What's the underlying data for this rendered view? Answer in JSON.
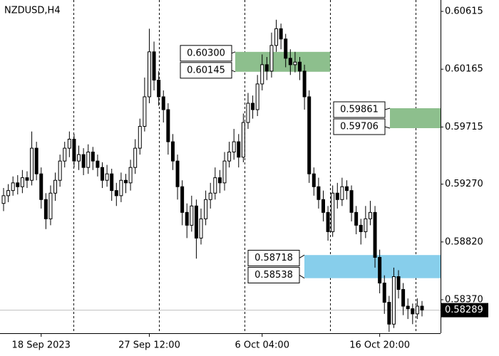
{
  "chart_data": {
    "type": "candlestick",
    "title": "NZDUSD,H4",
    "categories": [
      null,
      null,
      null,
      null,
      null,
      null,
      null,
      null,
      "18 Sep 2023",
      null,
      null,
      null,
      null,
      null,
      null,
      null,
      null,
      null,
      null,
      null,
      null,
      null,
      null,
      null,
      null,
      null,
      null,
      null,
      null,
      null,
      null,
      "27 Sep 12:00",
      null,
      null,
      null,
      null,
      null,
      null,
      null,
      null,
      null,
      null,
      null,
      null,
      null,
      null,
      null,
      null,
      null,
      null,
      null,
      null,
      null,
      null,
      null,
      "6 Oct 04:00",
      null,
      null,
      null,
      null,
      null,
      null,
      null,
      null,
      null,
      null,
      null,
      null,
      null,
      null,
      null,
      null,
      null,
      null,
      null,
      null,
      null,
      null,
      null,
      null,
      "16 Oct 20:00",
      null,
      null,
      null,
      null,
      null,
      null,
      null,
      null,
      null
    ],
    "candles": [
      [
        0.5912,
        0.5924,
        0.5906,
        0.5918
      ],
      [
        0.5918,
        0.5927,
        0.5913,
        0.5922
      ],
      [
        0.5922,
        0.5933,
        0.5918,
        0.5928
      ],
      [
        0.5928,
        0.5934,
        0.5919,
        0.5925
      ],
      [
        0.5925,
        0.5938,
        0.592,
        0.5932
      ],
      [
        0.5932,
        0.5937,
        0.5924,
        0.593
      ],
      [
        0.593,
        0.5968,
        0.5926,
        0.5955
      ],
      [
        0.5955,
        0.596,
        0.593,
        0.5935
      ],
      [
        0.5935,
        0.594,
        0.5908,
        0.5915
      ],
      [
        0.5915,
        0.592,
        0.5892,
        0.59
      ],
      [
        0.59,
        0.5926,
        0.5895,
        0.592
      ],
      [
        0.592,
        0.5936,
        0.5914,
        0.593
      ],
      [
        0.593,
        0.595,
        0.5925,
        0.5945
      ],
      [
        0.5945,
        0.596,
        0.594,
        0.5955
      ],
      [
        0.5955,
        0.5968,
        0.5948,
        0.5962
      ],
      [
        0.5962,
        0.5966,
        0.594,
        0.5945
      ],
      [
        0.5945,
        0.5957,
        0.5938,
        0.595
      ],
      [
        0.595,
        0.5955,
        0.5934,
        0.594
      ],
      [
        0.594,
        0.5958,
        0.5935,
        0.5952
      ],
      [
        0.5952,
        0.5956,
        0.5938,
        0.5945
      ],
      [
        0.5945,
        0.595,
        0.5933,
        0.594
      ],
      [
        0.594,
        0.5944,
        0.5924,
        0.593
      ],
      [
        0.593,
        0.5942,
        0.5925,
        0.5935
      ],
      [
        0.5935,
        0.5939,
        0.5914,
        0.5922
      ],
      [
        0.5922,
        0.5928,
        0.591,
        0.5918
      ],
      [
        0.5918,
        0.5936,
        0.5913,
        0.593
      ],
      [
        0.593,
        0.5935,
        0.592,
        0.5928
      ],
      [
        0.5928,
        0.5946,
        0.5922,
        0.594
      ],
      [
        0.594,
        0.5962,
        0.5935,
        0.5955
      ],
      [
        0.5955,
        0.5978,
        0.595,
        0.5972
      ],
      [
        0.5972,
        0.601,
        0.5968,
        0.5995
      ],
      [
        0.5995,
        0.6048,
        0.599,
        0.603
      ],
      [
        0.603,
        0.6038,
        0.6,
        0.6008
      ],
      [
        0.6008,
        0.6015,
        0.5988,
        0.5995
      ],
      [
        0.5995,
        0.6,
        0.5975,
        0.5985
      ],
      [
        0.5985,
        0.599,
        0.595,
        0.596
      ],
      [
        0.596,
        0.5966,
        0.5938,
        0.5945
      ],
      [
        0.5945,
        0.595,
        0.5915,
        0.5925
      ],
      [
        0.5925,
        0.593,
        0.5895,
        0.5905
      ],
      [
        0.5905,
        0.5912,
        0.5885,
        0.5895
      ],
      [
        0.5895,
        0.5918,
        0.589,
        0.591
      ],
      [
        0.591,
        0.5915,
        0.5869,
        0.5885
      ],
      [
        0.5885,
        0.5908,
        0.588,
        0.59
      ],
      [
        0.59,
        0.5922,
        0.5895,
        0.5915
      ],
      [
        0.5915,
        0.5928,
        0.5908,
        0.592
      ],
      [
        0.592,
        0.594,
        0.5915,
        0.5932
      ],
      [
        0.5932,
        0.5938,
        0.592,
        0.5928
      ],
      [
        0.5928,
        0.5952,
        0.5922,
        0.5945
      ],
      [
        0.5945,
        0.596,
        0.594,
        0.5952
      ],
      [
        0.5952,
        0.597,
        0.5946,
        0.596
      ],
      [
        0.596,
        0.5966,
        0.594,
        0.5948
      ],
      [
        0.5948,
        0.5982,
        0.5944,
        0.5975
      ],
      [
        0.5975,
        0.5998,
        0.597,
        0.599
      ],
      [
        0.599,
        0.5996,
        0.5978,
        0.5985
      ],
      [
        0.5985,
        0.6012,
        0.598,
        0.6005
      ],
      [
        0.6005,
        0.6028,
        0.6,
        0.602
      ],
      [
        0.602,
        0.6026,
        0.6008,
        0.6015
      ],
      [
        0.6015,
        0.6045,
        0.601,
        0.6035
      ],
      [
        0.6035,
        0.6055,
        0.603,
        0.6048
      ],
      [
        0.6048,
        0.6052,
        0.6032,
        0.604
      ],
      [
        0.604,
        0.6044,
        0.6018,
        0.6025
      ],
      [
        0.6025,
        0.6032,
        0.6012,
        0.602
      ],
      [
        0.602,
        0.603,
        0.6014,
        0.6022
      ],
      [
        0.6022,
        0.6026,
        0.6008,
        0.6015
      ],
      [
        0.6015,
        0.602,
        0.5985,
        0.5995
      ],
      [
        0.5995,
        0.6,
        0.5928,
        0.5935
      ],
      [
        0.5935,
        0.594,
        0.5918,
        0.5925
      ],
      [
        0.5925,
        0.5932,
        0.5908,
        0.5915
      ],
      [
        0.5915,
        0.5922,
        0.5898,
        0.5905
      ],
      [
        0.5905,
        0.591,
        0.5883,
        0.589
      ],
      [
        0.589,
        0.5926,
        0.5886,
        0.592
      ],
      [
        0.592,
        0.5928,
        0.5908,
        0.5915
      ],
      [
        0.5915,
        0.5932,
        0.591,
        0.5925
      ],
      [
        0.5925,
        0.593,
        0.5915,
        0.5922
      ],
      [
        0.5922,
        0.5926,
        0.5898,
        0.5905
      ],
      [
        0.5905,
        0.591,
        0.5888,
        0.5895
      ],
      [
        0.5895,
        0.59,
        0.588,
        0.589
      ],
      [
        0.589,
        0.591,
        0.5885,
        0.59
      ],
      [
        0.59,
        0.5914,
        0.5895,
        0.5905
      ],
      [
        0.5905,
        0.591,
        0.5862,
        0.587
      ],
      [
        0.587,
        0.5876,
        0.5842,
        0.585
      ],
      [
        0.585,
        0.5856,
        0.5826,
        0.5835
      ],
      [
        0.5835,
        0.584,
        0.5812,
        0.5818
      ],
      [
        0.5818,
        0.5862,
        0.5815,
        0.5855
      ],
      [
        0.5855,
        0.586,
        0.5838,
        0.5845
      ],
      [
        0.5845,
        0.585,
        0.5825,
        0.5832
      ],
      [
        0.5832,
        0.5838,
        0.5822,
        0.583
      ],
      [
        0.583,
        0.5834,
        0.5818,
        0.5826
      ],
      [
        0.5826,
        0.5838,
        0.5822,
        0.5832
      ],
      [
        0.5832,
        0.5836,
        0.5824,
        0.5829
      ]
    ],
    "ylim": [
      0.58126,
      0.60676
    ],
    "yticks": [
      0.60615,
      0.60165,
      0.59715,
      {
        "value": 0.5927,
        "label": "0.59270"
      },
      {
        "value": 0.5882,
        "label": "0.58820"
      },
      {
        "value": 0.5837,
        "label": "0.58370"
      }
    ],
    "zones": [
      {
        "values": [
          0.603,
          0.60145
        ],
        "value_labels": [
          "0.60300",
          "0.60145"
        ],
        "color": "#8dbf8d"
      },
      {
        "values": [
          0.59861,
          0.59706
        ],
        "value_labels": [
          "0.59861",
          "0.59706"
        ],
        "color": "#8dbf8d"
      },
      {
        "values": [
          0.58718,
          0.58538
        ],
        "value_labels": [
          "0.58718",
          "0.58538"
        ],
        "color": "#87ceeb"
      }
    ],
    "last_price": 0.58289
  }
}
